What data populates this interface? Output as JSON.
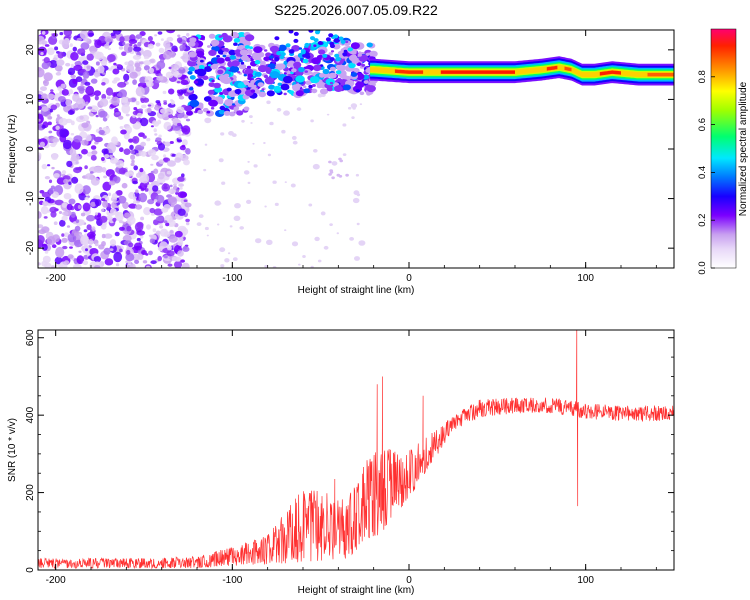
{
  "title": "S225.2026.007.05.09.R22",
  "chart_data": [
    {
      "type": "heatmap",
      "xlabel": "Height of straight line (km)",
      "ylabel": "Frequency (Hz)",
      "xlim": [
        -210,
        150
      ],
      "ylim": [
        -24,
        24
      ],
      "x_ticks": [
        -200,
        -100,
        0,
        100
      ],
      "y_ticks": [
        -20,
        -10,
        0,
        10,
        20
      ],
      "colorbar": {
        "label": "Normalized spectral amplitude",
        "ticks": [
          0.0,
          0.2,
          0.4,
          0.6,
          0.8
        ],
        "range": [
          0,
          1
        ],
        "colormap": [
          "#ffffff",
          "#d0a8f0",
          "#7b00ff",
          "#0000ff",
          "#00c8ff",
          "#00ff80",
          "#80ff00",
          "#ffff00",
          "#ff8000",
          "#ff0060"
        ]
      },
      "ridge": [
        {
          "x": -120,
          "f": 15
        },
        {
          "x": -100,
          "f": 15
        },
        {
          "x": -80,
          "f": 16
        },
        {
          "x": -60,
          "f": 16
        },
        {
          "x": -40,
          "f": 17
        },
        {
          "x": -25,
          "f": 16
        },
        {
          "x": -20,
          "f": 16
        },
        {
          "x": 0,
          "f": 15.5
        },
        {
          "x": 20,
          "f": 15.5
        },
        {
          "x": 40,
          "f": 15.5
        },
        {
          "x": 60,
          "f": 15.5
        },
        {
          "x": 75,
          "f": 16
        },
        {
          "x": 85,
          "f": 16.5
        },
        {
          "x": 92,
          "f": 16
        },
        {
          "x": 98,
          "f": 15
        },
        {
          "x": 105,
          "f": 15
        },
        {
          "x": 115,
          "f": 15.5
        },
        {
          "x": 130,
          "f": 15
        },
        {
          "x": 150,
          "f": 15
        }
      ],
      "noise_region_x": [
        -210,
        -125
      ],
      "grid": false
    },
    {
      "type": "line",
      "xlabel": "Height of straight line (km)",
      "ylabel": "SNR (10 * v/v)",
      "xlim": [
        -210,
        150
      ],
      "ylim": [
        0,
        620
      ],
      "x_ticks": [
        -200,
        -100,
        0,
        100
      ],
      "y_ticks": [
        0,
        200,
        400,
        600
      ],
      "line_color": "#ff0000",
      "grid": false,
      "envelope": [
        {
          "x": -210,
          "lo": 5,
          "hi": 30
        },
        {
          "x": -150,
          "lo": 5,
          "hi": 30
        },
        {
          "x": -120,
          "lo": 5,
          "hi": 35
        },
        {
          "x": -100,
          "lo": 10,
          "hi": 60
        },
        {
          "x": -80,
          "lo": 15,
          "hi": 90
        },
        {
          "x": -60,
          "lo": 20,
          "hi": 210
        },
        {
          "x": -45,
          "lo": 25,
          "hi": 200
        },
        {
          "x": -35,
          "lo": 30,
          "hi": 180
        },
        {
          "x": -25,
          "lo": 60,
          "hi": 280
        },
        {
          "x": -15,
          "lo": 100,
          "hi": 320
        },
        {
          "x": -5,
          "lo": 150,
          "hi": 300
        },
        {
          "x": 5,
          "lo": 220,
          "hi": 330
        },
        {
          "x": 15,
          "lo": 290,
          "hi": 360
        },
        {
          "x": 25,
          "lo": 360,
          "hi": 400
        },
        {
          "x": 40,
          "lo": 395,
          "hi": 440
        },
        {
          "x": 60,
          "lo": 405,
          "hi": 445
        },
        {
          "x": 80,
          "lo": 405,
          "hi": 445
        },
        {
          "x": 90,
          "lo": 400,
          "hi": 440
        },
        {
          "x": 100,
          "lo": 390,
          "hi": 430
        },
        {
          "x": 120,
          "lo": 385,
          "hi": 425
        },
        {
          "x": 150,
          "lo": 385,
          "hi": 425
        }
      ],
      "spikes": [
        {
          "x": -88,
          "y": 65
        },
        {
          "x": -57,
          "y": 165
        },
        {
          "x": -52,
          "y": 200
        },
        {
          "x": -42,
          "y": 235
        },
        {
          "x": -18,
          "y": 480
        },
        {
          "x": -15,
          "y": 500
        },
        {
          "x": 8,
          "y": 450
        },
        {
          "x": 95,
          "y": 640
        },
        {
          "x": 95.5,
          "y": 165
        }
      ]
    }
  ]
}
